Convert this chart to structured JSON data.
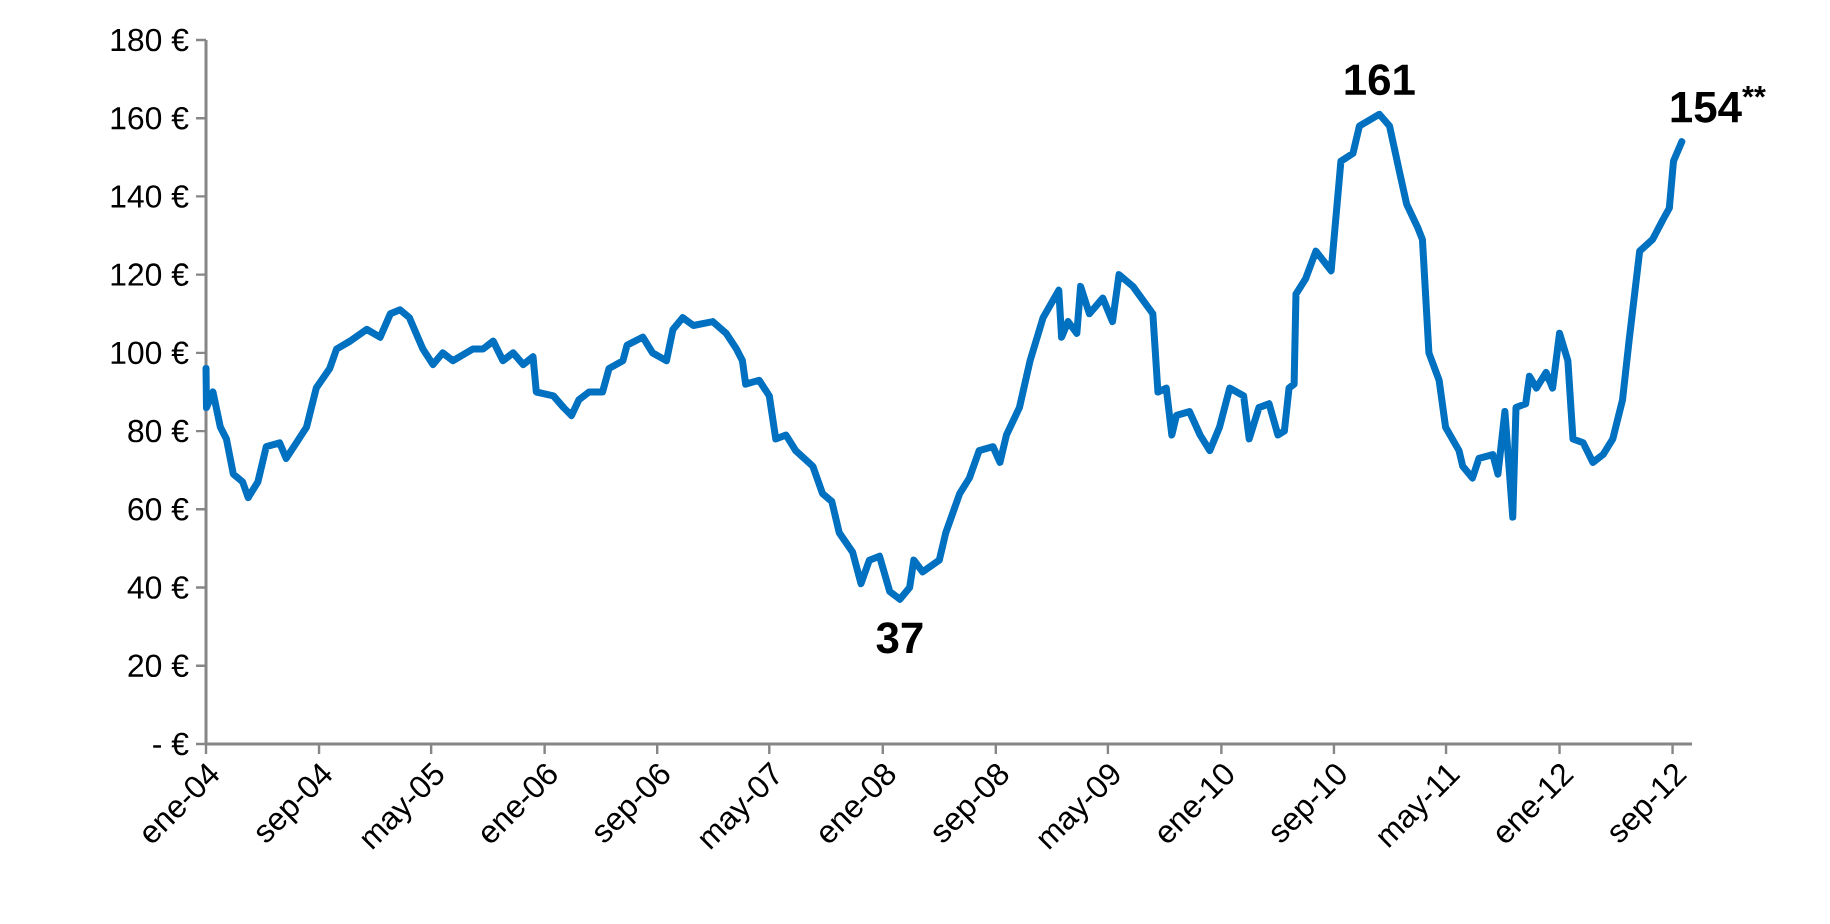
{
  "chart_data": {
    "type": "line",
    "color": "#0070c0",
    "line_style": "solid",
    "marker": "none",
    "xlim": [
      "2004-01-01",
      "2012-10-13"
    ],
    "ylim": [
      0,
      180
    ],
    "yticks": [
      {
        "value": 0,
        "label": "- €"
      },
      {
        "value": 20,
        "label": "20 €"
      },
      {
        "value": 40,
        "label": "40 €"
      },
      {
        "value": 60,
        "label": "60 €"
      },
      {
        "value": 80,
        "label": "80 €"
      },
      {
        "value": 100,
        "label": "100 €"
      },
      {
        "value": 120,
        "label": "120 €"
      },
      {
        "value": 140,
        "label": "140 €"
      },
      {
        "value": 160,
        "label": "160 €"
      },
      {
        "value": 180,
        "label": "180 €"
      }
    ],
    "xticks": [
      {
        "value": "2004-01-01",
        "label": "ene-04"
      },
      {
        "value": "2004-09-01",
        "label": "sep-04"
      },
      {
        "value": "2005-05-01",
        "label": "may-05"
      },
      {
        "value": "2006-01-01",
        "label": "ene-06"
      },
      {
        "value": "2006-09-01",
        "label": "sep-06"
      },
      {
        "value": "2007-05-01",
        "label": "may-07"
      },
      {
        "value": "2008-01-01",
        "label": "ene-08"
      },
      {
        "value": "2008-09-01",
        "label": "sep-08"
      },
      {
        "value": "2009-05-01",
        "label": "may-09"
      },
      {
        "value": "2010-01-01",
        "label": "ene-10"
      },
      {
        "value": "2010-09-01",
        "label": "sep-10"
      },
      {
        "value": "2011-05-01",
        "label": "may-11"
      },
      {
        "value": "2012-01-01",
        "label": "ene-12"
      },
      {
        "value": "2012-09-01",
        "label": "sep-12"
      }
    ],
    "x": [
      "2004-01-01",
      "2004-01-02",
      "2004-01-16",
      "2004-02-01",
      "2004-02-14",
      "2004-02-29",
      "2004-03-20",
      "2004-04-01",
      "2004-04-22",
      "2004-05-10",
      "2004-06-08",
      "2004-06-22",
      "2004-07-14",
      "2004-08-05",
      "2004-08-26",
      "2004-09-24",
      "2004-10-09",
      "2004-11-07",
      "2004-12-13",
      "2005-01-11",
      "2005-02-02",
      "2005-02-23",
      "2005-03-15",
      "2005-04-13",
      "2005-05-05",
      "2005-05-26",
      "2005-06-17",
      "2005-07-30",
      "2005-08-21",
      "2005-09-12",
      "2005-10-03",
      "2005-10-25",
      "2005-11-16",
      "2005-12-07",
      "2005-12-14",
      "2006-01-20",
      "2006-02-11",
      "2006-02-28",
      "2006-03-16",
      "2006-04-07",
      "2006-05-06",
      "2006-05-20",
      "2006-06-19",
      "2006-06-28",
      "2006-08-01",
      "2006-08-22",
      "2006-09-21",
      "2006-10-05",
      "2006-10-26",
      "2006-11-18",
      "2006-12-30",
      "2007-01-28",
      "2007-02-19",
      "2007-03-04",
      "2007-03-11",
      "2007-04-09",
      "2007-05-01",
      "2007-05-15",
      "2007-06-06",
      "2007-06-27",
      "2007-08-03",
      "2007-08-24",
      "2007-09-13",
      "2007-09-29",
      "2007-10-28",
      "2007-11-15",
      "2007-12-03",
      "2007-12-25",
      "2008-01-16",
      "2008-02-07",
      "2008-02-28",
      "2008-03-08",
      "2008-03-27",
      "2008-05-02",
      "2008-05-16",
      "2008-06-15",
      "2008-07-06",
      "2008-07-27",
      "2008-08-26",
      "2008-09-10",
      "2008-09-24",
      "2008-10-22",
      "2008-11-14",
      "2008-12-12",
      "2009-01-15",
      "2009-01-21",
      "2009-02-04",
      "2009-02-23",
      "2009-03-03",
      "2009-03-22",
      "2009-04-20",
      "2009-05-11",
      "2009-05-25",
      "2009-06-24",
      "2009-08-06",
      "2009-08-17",
      "2009-09-04",
      "2009-09-16",
      "2009-09-26",
      "2009-10-24",
      "2009-11-16",
      "2009-12-07",
      "2009-12-28",
      "2010-01-19",
      "2010-02-18",
      "2010-03-02",
      "2010-03-23",
      "2010-04-14",
      "2010-05-03",
      "2010-05-17",
      "2010-05-27",
      "2010-06-07",
      "2010-06-11",
      "2010-07-02",
      "2010-07-24",
      "2010-08-26",
      "2010-09-16",
      "2010-10-12",
      "2010-10-26",
      "2010-12-08",
      "2010-12-30",
      "2011-01-21",
      "2011-02-05",
      "2011-03-01",
      "2011-03-11",
      "2011-03-25",
      "2011-04-16",
      "2011-04-30",
      "2011-05-29",
      "2011-06-06",
      "2011-06-27",
      "2011-07-11",
      "2011-08-10",
      "2011-08-21",
      "2011-09-05",
      "2011-09-22",
      "2011-09-29",
      "2011-10-20",
      "2011-10-28",
      "2011-11-12",
      "2011-12-03",
      "2011-12-17",
      "2012-01-01",
      "2012-01-19",
      "2012-01-30",
      "2012-02-21",
      "2012-03-13",
      "2012-04-04",
      "2012-04-25",
      "2012-05-16",
      "2012-05-30",
      "2012-06-22",
      "2012-07-20",
      "2012-08-11",
      "2012-08-25",
      "2012-09-03",
      "2012-09-21"
    ],
    "values": [
      96,
      86,
      90,
      81,
      78,
      69,
      67,
      63,
      67,
      76,
      77,
      73,
      77,
      81,
      91,
      96,
      101,
      103,
      106,
      104,
      110,
      111,
      109,
      101,
      97,
      100,
      98,
      101,
      101,
      103,
      98,
      100,
      97,
      99,
      90,
      89,
      86,
      84,
      88,
      90,
      90,
      96,
      98,
      102,
      104,
      100,
      98,
      106,
      109,
      107,
      108,
      105,
      101,
      98,
      92,
      93,
      89,
      78,
      79,
      75,
      71,
      64,
      62,
      54,
      49,
      41,
      47,
      48,
      39,
      37,
      40,
      47,
      44,
      47,
      54,
      64,
      68,
      75,
      76,
      72,
      79,
      86,
      98,
      109,
      116,
      104,
      108,
      105,
      117,
      110,
      114,
      108,
      120,
      117,
      110,
      90,
      91,
      79,
      84,
      85,
      79,
      75,
      81,
      91,
      89,
      78,
      86,
      87,
      79,
      80,
      91,
      92,
      115,
      119,
      126,
      121,
      149,
      151,
      158,
      161,
      158,
      146,
      138,
      132,
      129,
      100,
      93,
      81,
      75,
      71,
      68,
      73,
      74,
      69,
      85,
      58,
      86,
      87,
      94,
      91,
      95,
      91,
      105,
      98,
      78,
      77,
      72,
      74,
      78,
      88,
      103,
      126,
      129,
      134,
      137,
      149,
      154
    ],
    "annotations": [
      {
        "text": "37",
        "x": "2008-02-07",
        "y": 37
      },
      {
        "text": "161",
        "x": "2010-12-08",
        "y": 161
      },
      {
        "text": "154$^{**}$",
        "x": "2012-09-21",
        "y": 154
      }
    ]
  }
}
